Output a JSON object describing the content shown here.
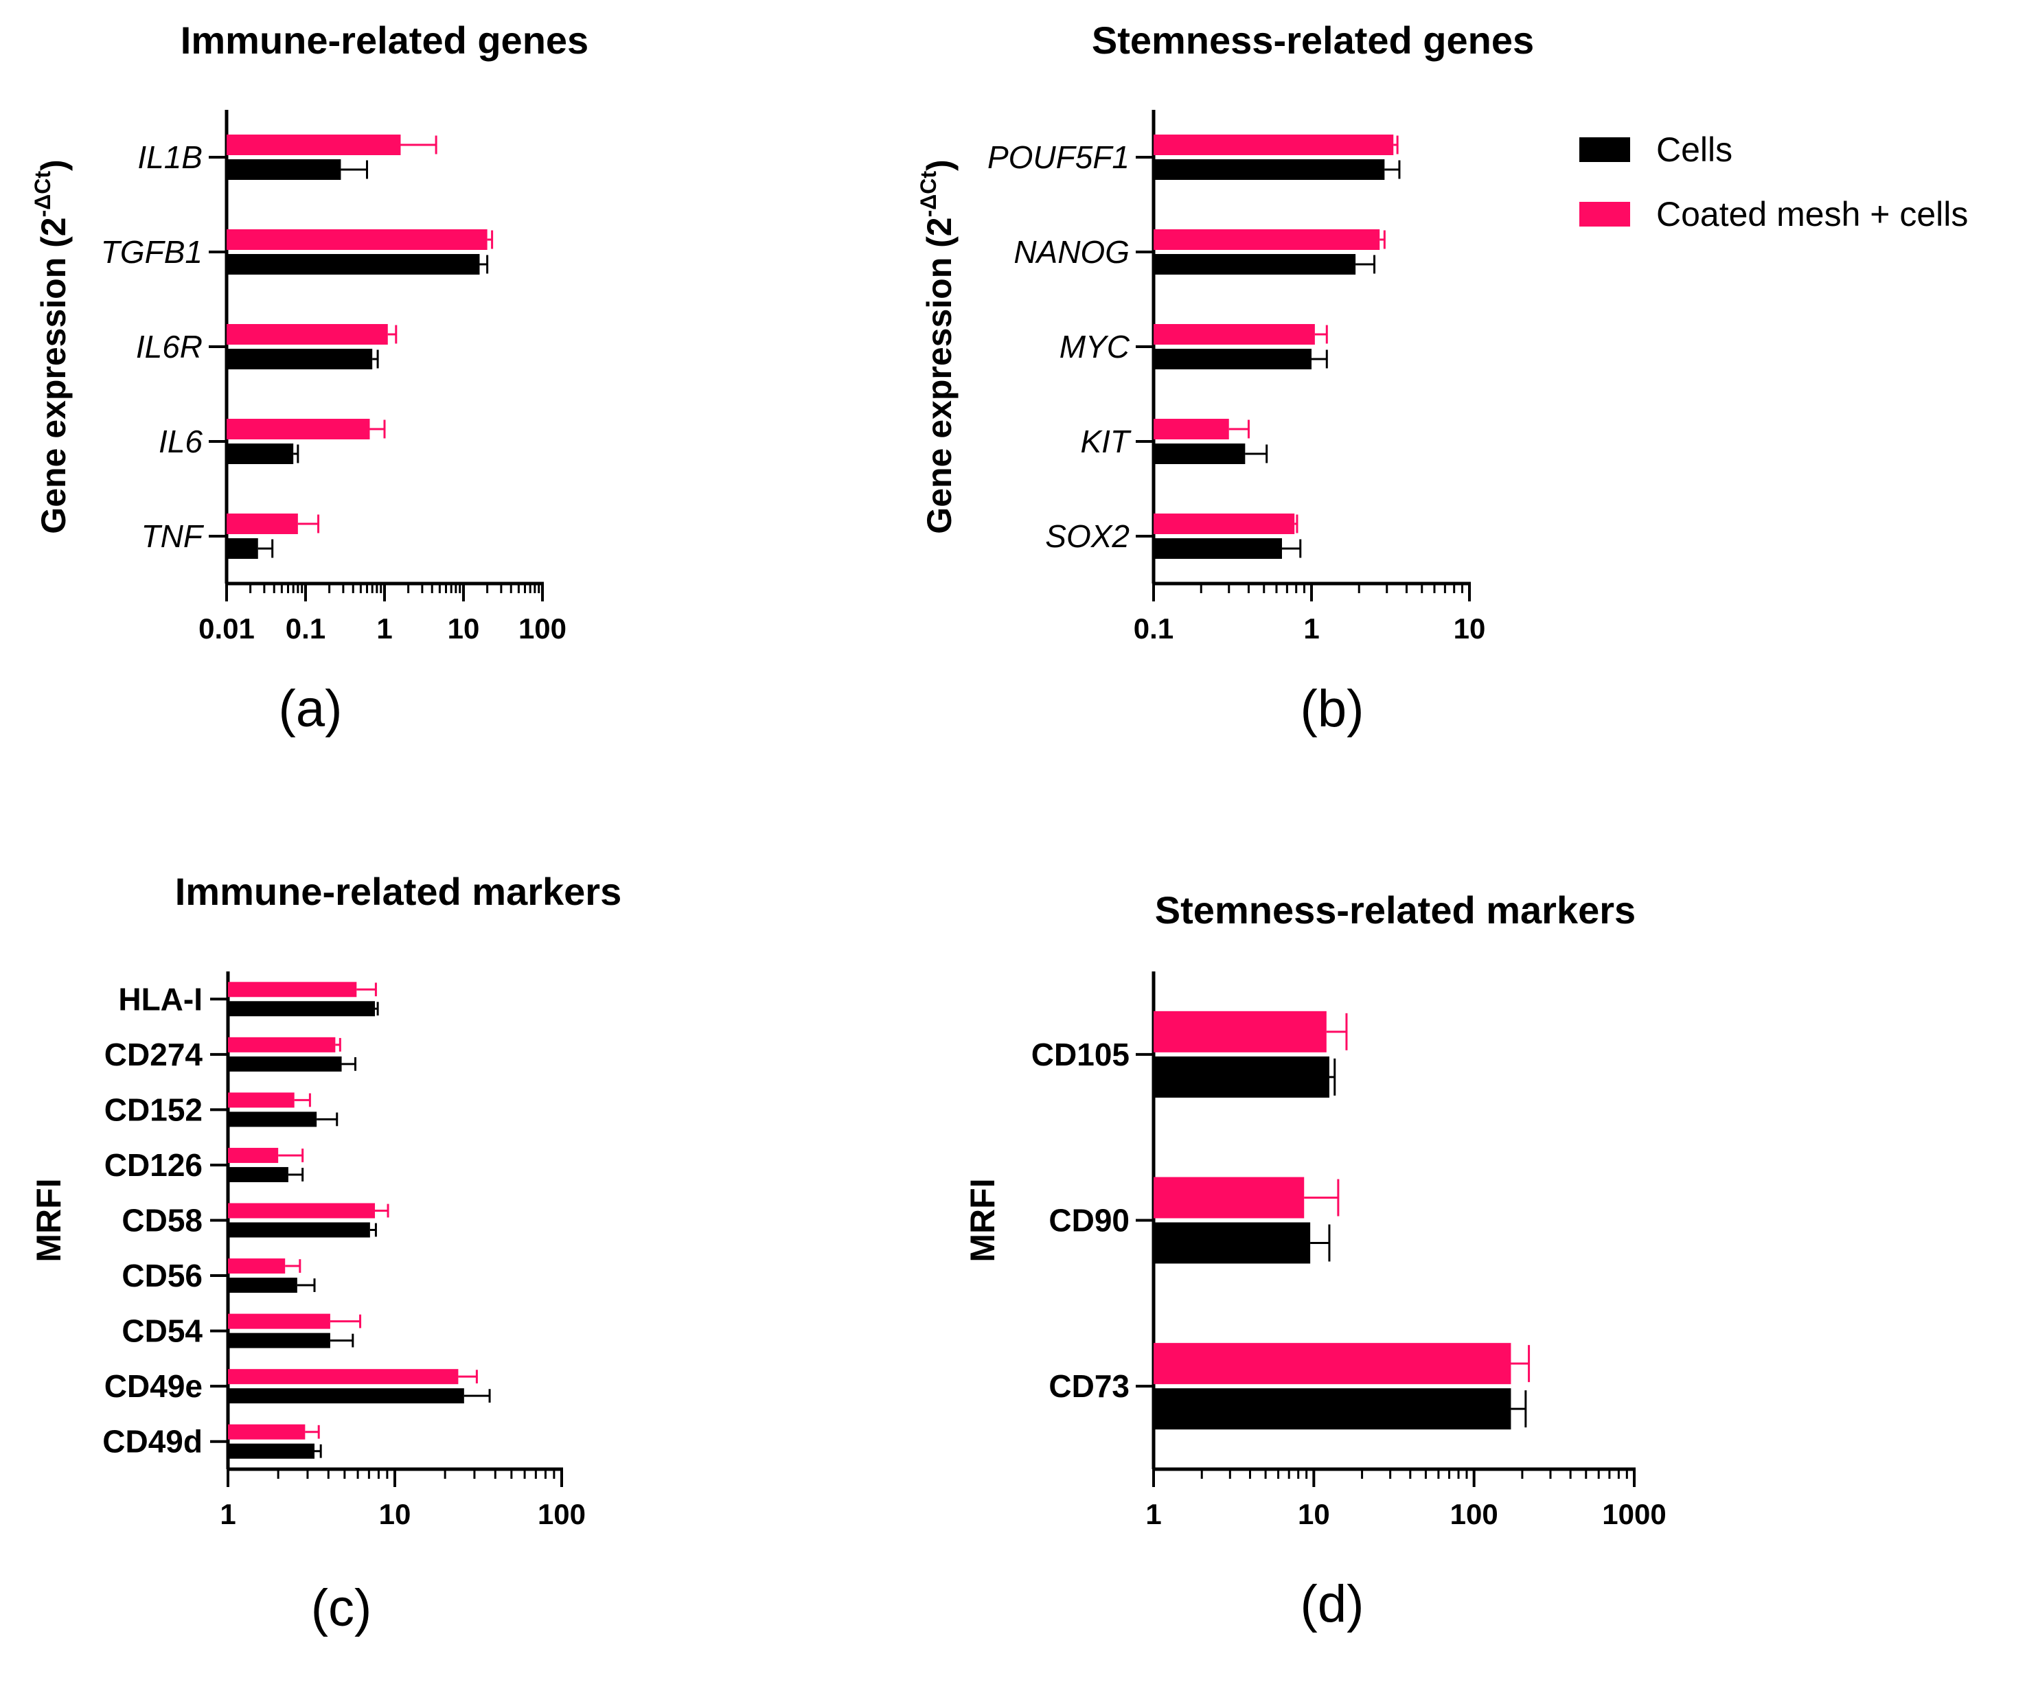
{
  "legend": {
    "items": [
      {
        "label": "Cells",
        "color": "#000000"
      },
      {
        "label": "Coated mesh + cells",
        "color": "#ff0a63"
      }
    ]
  },
  "chart_data": [
    {
      "type": "bar",
      "orientation": "horizontal",
      "panel_label": "(a)",
      "title": "Immune-related genes",
      "xlabel": "",
      "ylabel": "Gene expression (2",
      "ylabel_superscript": "-ΔCt",
      "ylabel_suffix": ")",
      "xscale": "log",
      "xlim": [
        0.01,
        100
      ],
      "ticks": [
        {
          "value": 0.01,
          "label": "0.01"
        },
        {
          "value": 0.1,
          "label": "0.1"
        },
        {
          "value": 1,
          "label": "1"
        },
        {
          "value": 10,
          "label": "10"
        },
        {
          "value": 100,
          "label": "100"
        }
      ],
      "category_style": "italic",
      "categories": [
        "IL1B",
        "TGFB1",
        "IL6R",
        "IL6",
        "TNF"
      ],
      "series": [
        {
          "name": "Coated mesh + cells",
          "color": "#ff0a63",
          "values": [
            1.6,
            20,
            1.1,
            0.65,
            0.08
          ],
          "errors": [
            2.9,
            3,
            0.3,
            0.35,
            0.065
          ]
        },
        {
          "name": "Cells",
          "color": "#000000",
          "values": [
            0.28,
            16,
            0.7,
            0.07,
            0.025
          ],
          "errors": [
            0.32,
            4,
            0.12,
            0.01,
            0.013
          ]
        }
      ]
    },
    {
      "type": "bar",
      "orientation": "horizontal",
      "panel_label": "(b)",
      "title": "Stemness-related genes",
      "xlabel": "",
      "ylabel": "Gene expression (2",
      "ylabel_superscript": "-ΔCt",
      "ylabel_suffix": ")",
      "xscale": "log",
      "xlim": [
        0.1,
        10
      ],
      "ticks": [
        {
          "value": 0.1,
          "label": "0.1"
        },
        {
          "value": 1,
          "label": "1"
        },
        {
          "value": 10,
          "label": "10"
        }
      ],
      "category_style": "italic",
      "categories": [
        "POUF5F1",
        "NANOG",
        "MYC",
        "KIT",
        "SOX2"
      ],
      "series": [
        {
          "name": "Coated mesh + cells",
          "color": "#ff0a63",
          "values": [
            3.3,
            2.7,
            1.05,
            0.3,
            0.78
          ],
          "errors": [
            0.2,
            0.2,
            0.2,
            0.1,
            0.03
          ]
        },
        {
          "name": "Cells",
          "color": "#000000",
          "values": [
            2.9,
            1.9,
            1.0,
            0.38,
            0.65
          ],
          "errors": [
            0.7,
            0.6,
            0.25,
            0.14,
            0.2
          ]
        }
      ]
    },
    {
      "type": "bar",
      "orientation": "horizontal",
      "panel_label": "(c)",
      "title": "Immune-related markers",
      "xlabel": "",
      "ylabel": "MRFI",
      "xscale": "log",
      "xlim": [
        1,
        100
      ],
      "ticks": [
        {
          "value": 1,
          "label": "1"
        },
        {
          "value": 10,
          "label": "10"
        },
        {
          "value": 100,
          "label": "100"
        }
      ],
      "category_style": "bold",
      "categories": [
        "HLA-I",
        "CD274",
        "CD152",
        "CD126",
        "CD58",
        "CD56",
        "CD54",
        "CD49e",
        "CD49d"
      ],
      "series": [
        {
          "name": "Coated mesh + cells",
          "color": "#ff0a63",
          "values": [
            5.9,
            4.4,
            2.5,
            2.0,
            7.6,
            2.2,
            4.1,
            24,
            2.9
          ],
          "errors": [
            1.8,
            0.3,
            0.6,
            0.8,
            1.5,
            0.5,
            2.1,
            7,
            0.6
          ]
        },
        {
          "name": "Cells",
          "color": "#000000",
          "values": [
            7.6,
            4.8,
            3.4,
            2.3,
            7.1,
            2.6,
            4.1,
            26,
            3.3
          ],
          "errors": [
            0.3,
            1.0,
            1.1,
            0.5,
            0.6,
            0.7,
            1.5,
            11,
            0.3
          ]
        }
      ]
    },
    {
      "type": "bar",
      "orientation": "horizontal",
      "panel_label": "(d)",
      "title": "Stemness-related markers",
      "xlabel": "",
      "ylabel": "MRFI",
      "xscale": "log",
      "xlim": [
        1,
        1000
      ],
      "ticks": [
        {
          "value": 1,
          "label": "1"
        },
        {
          "value": 10,
          "label": "10"
        },
        {
          "value": 100,
          "label": "100"
        },
        {
          "value": 1000,
          "label": "1000"
        }
      ],
      "category_style": "bold",
      "categories": [
        "CD105",
        "CD90",
        "CD73"
      ],
      "series": [
        {
          "name": "Coated mesh + cells",
          "color": "#ff0a63",
          "values": [
            12,
            8.7,
            170
          ],
          "errors": [
            4,
            5.5,
            50
          ]
        },
        {
          "name": "Cells",
          "color": "#000000",
          "values": [
            12.5,
            9.5,
            170
          ],
          "errors": [
            1,
            3,
            40
          ]
        }
      ]
    }
  ]
}
